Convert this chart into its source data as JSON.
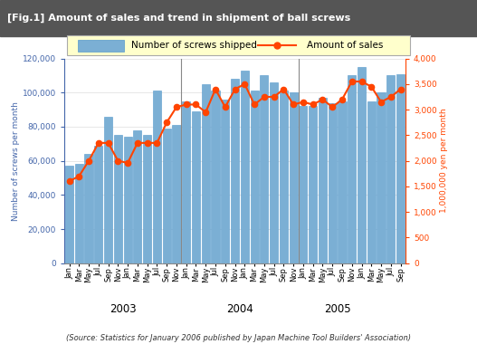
{
  "title": "[Fig.1] Amount of sales and trend in shipment of ball screws",
  "source": "(Source: Statistics for January 2006 published by Japan Machine Tool Builders' Association)",
  "bar_color": "#7BAFD4",
  "line_color": "#FF4400",
  "bar_edge_color": "#5599CC",
  "years": [
    2003,
    2004,
    2005
  ],
  "bar_values": [
    57000,
    58000,
    64000,
    69000,
    86000,
    75000,
    74000,
    78000,
    75000,
    101000,
    79000,
    81000,
    95000,
    89000,
    105000,
    101000,
    96000,
    108000,
    113000,
    101000,
    110000,
    106000,
    101000,
    100000,
    92000,
    92000,
    97000,
    94000,
    95000,
    110000,
    115000,
    95000,
    100000,
    110000,
    111000
  ],
  "sales_values": [
    1600,
    1700,
    2000,
    2350,
    2350,
    2000,
    1960,
    2350,
    2350,
    2350,
    2750,
    3050,
    3100,
    3100,
    2950,
    3400,
    3050,
    3400,
    3500,
    3100,
    3250,
    3250,
    3400,
    3100,
    3150,
    3100,
    3200,
    3050,
    3200,
    3550,
    3550,
    3450,
    3150,
    3250,
    3400
  ],
  "left_ylabel": "Number of screws per month",
  "right_ylabel": "1,000,000 yen per month",
  "left_ylim": [
    0,
    120000
  ],
  "right_ylim": [
    0,
    4000
  ],
  "left_yticks": [
    0,
    20000,
    40000,
    60000,
    80000,
    100000,
    120000
  ],
  "right_yticks": [
    0,
    500,
    1000,
    1500,
    2000,
    2500,
    3000,
    3500,
    4000
  ],
  "title_bg": "#555555",
  "title_color": "white",
  "legend_bg": "#FFFFCC",
  "bar_label": "Number of screws shipped",
  "line_label": "Amount of sales",
  "left_axis_color": "#4466AA",
  "right_axis_color": "#FF4400"
}
